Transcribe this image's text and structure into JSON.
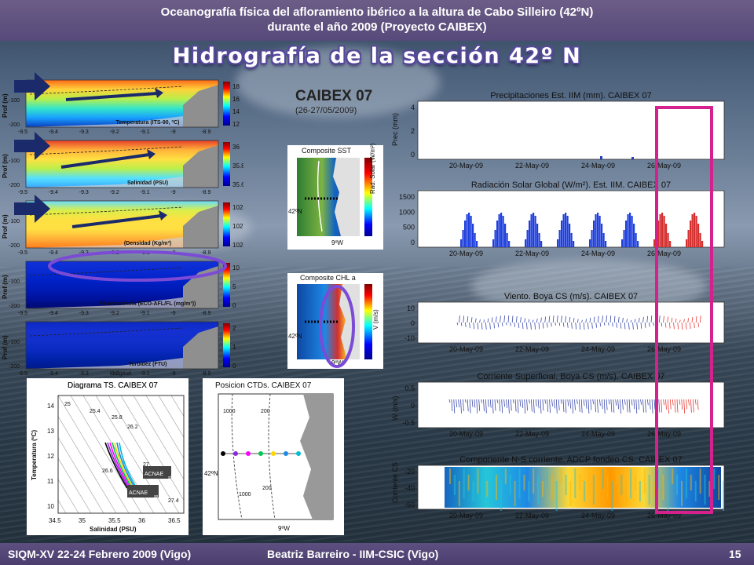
{
  "header": {
    "line1": "Oceanografía física del afloramiento ibérico a la altura de Cabo Silleiro (42ºN)",
    "line2": "durante el año 2009 (Proyecto CAIBEX)"
  },
  "slide_title": "Hidrografía de la sección 42º N",
  "footer": {
    "left": "SIQM-XV 22-24 Febrero 2009 (Vigo)",
    "center": "Beatriz Barreiro  - IIM-CSIC (Vigo)",
    "page": "15"
  },
  "sections": {
    "ylabel": "Prof (m)",
    "y_ticks": [
      "-100",
      "-200"
    ],
    "x_ticks": [
      "-9.5",
      "-9.4",
      "-9.3",
      "-9.2",
      "-9.1",
      "-9",
      "-8.9"
    ],
    "xlabel": "Longitud",
    "panels": [
      {
        "label": "Temperatura (ITS-90, ºC)",
        "cbar": [
          "18",
          "16",
          "14",
          "12"
        ]
      },
      {
        "label": "Salinidad (PSU)",
        "cbar": [
          "36",
          "35.8",
          "35.6"
        ]
      },
      {
        "label": "(Densidad (Kg/m³)",
        "cbar": [
          "1028",
          "1027",
          "1026"
        ]
      },
      {
        "label": "Fluorescencia (ECO-AFL/FL (mg/m³))",
        "cbar": [
          "10",
          "5",
          "0"
        ]
      },
      {
        "label": "Turbidez (FTU)",
        "cbar": [
          "2",
          "1",
          "0"
        ]
      }
    ]
  },
  "campaign": {
    "title": "CAIBEX 07",
    "dates": "(26-27/05/2009)"
  },
  "composite_sst": {
    "title": "Composite  SST",
    "cbar_label": "Rad. Solar (W/m²)",
    "lat": "42ºN",
    "lon": "9ºW"
  },
  "composite_chl": {
    "title": "Composite  CHL a",
    "cbar_label": "V    (m/s)",
    "lat": "42ºN",
    "lon": "9ºW"
  },
  "ts_diagram": {
    "title": "Diagrama TS. CAIBEX 07",
    "xlabel": "Salinidad (PSU)",
    "ylabel": "Temperatura (ºC)",
    "x_ticks": [
      "34.5",
      "35",
      "35.5",
      "36",
      "36.5"
    ],
    "y_ticks": [
      "14",
      "13",
      "12",
      "11",
      "10"
    ],
    "isopycnals": [
      "25",
      "25.4",
      "25.8",
      "26.2",
      "26.6",
      "27",
      "27.4"
    ],
    "labels": [
      "ACNAE",
      "ACNAE"
    ],
    "subs": [
      "st",
      "sp"
    ]
  },
  "ctd_map": {
    "title": "Posicion CTDs. CAIBEX 07",
    "isobaths": [
      "1000",
      "200",
      "1000",
      "200"
    ],
    "lat": "42ºN",
    "lon": "9ºW",
    "station_colors": [
      "#000000",
      "#8a2be2",
      "#ff00ff",
      "#00c853",
      "#ffd600",
      "#1e88e5",
      "#00bcd4"
    ]
  },
  "timeseries": {
    "x_ticks": [
      "20-May-09",
      "22-May-09",
      "24-May-09",
      "26-May-09"
    ],
    "panels": [
      {
        "title": "Precipitaciones Est. IIM (mm).  CAIBEX 07",
        "ylabel": "Prec (mm)",
        "y_ticks": [
          "4",
          "2",
          "0"
        ]
      },
      {
        "title": "Radiación Solar Global (W/m²). Est. IIM. CAIBEX 07",
        "ylabel": "",
        "y_ticks": [
          "1500",
          "1000",
          "500",
          "0"
        ]
      },
      {
        "title": "Viento. Boya CS (m/s). CAIBEX 07",
        "ylabel": "",
        "y_ticks": [
          "10",
          "0",
          "-10"
        ]
      },
      {
        "title": "Corriente Superficial. Boya CS (m/s). CAIBEX 07",
        "ylabel": "W    (m/s)",
        "y_ticks": [
          "0.5",
          "0",
          "-0.5"
        ]
      },
      {
        "title": "Componente N-S corriente. ADCP fondeo CS. CAIBEX 07",
        "ylabel": "Corriente CS",
        "y_ticks": [
          "-20",
          "-40",
          "-60"
        ]
      }
    ]
  },
  "colors": {
    "highlight_magenta": "#d4218e",
    "highlight_purple": "#7b4bd6",
    "arrow_navy": "#1b2a6b",
    "header_purple": "#5d4f80"
  }
}
